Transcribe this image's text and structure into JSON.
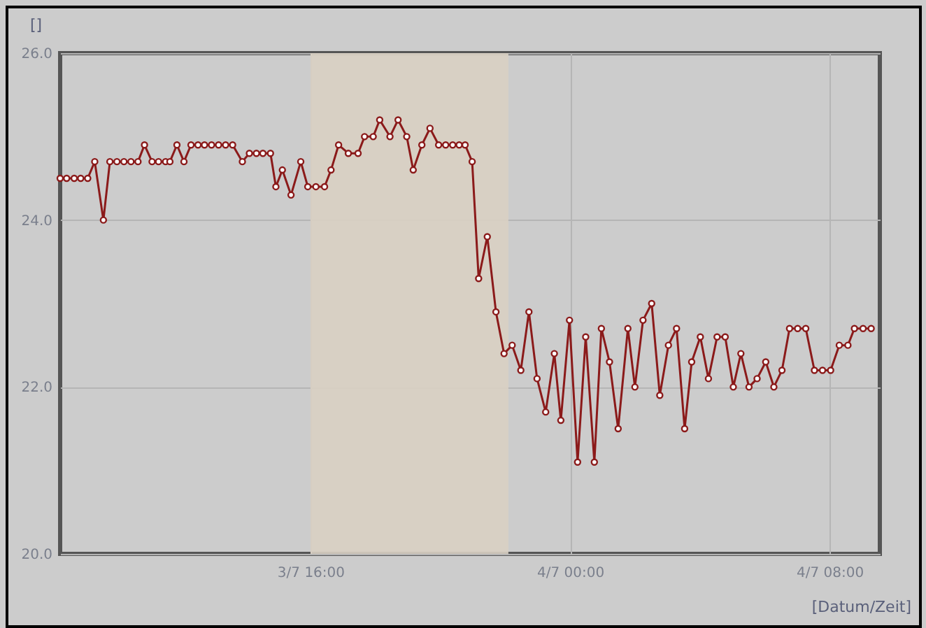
{
  "chart_data": {
    "type": "line",
    "ylabel": "[]",
    "xlabel": "[Datum/Zeit]",
    "xlim": [
      "--07-03T08:17",
      "--07-04T09:33"
    ],
    "ylim": [
      20,
      26
    ],
    "xticks": [
      {
        "value": "--07-03T16:00",
        "label": "3/7 16:00"
      },
      {
        "value": "--07-04T00:00",
        "label": "4/7 00:00"
      },
      {
        "value": "--07-04T08:00",
        "label": "4/7 08:00"
      }
    ],
    "yticks": [
      {
        "value": 20,
        "label": "20.0"
      },
      {
        "value": 22,
        "label": "22.0"
      },
      {
        "value": 24,
        "label": "24.0"
      },
      {
        "value": 26,
        "label": "26.0"
      }
    ],
    "grid": true,
    "marker": "circle",
    "line_style": "solid",
    "bands": [
      {
        "axis": "x",
        "from": "--07-03T16:00",
        "to": "--07-03T22:06",
        "color": "#d9d0c3"
      }
    ],
    "x": [
      "--07-03T08:17",
      "--07-03T08:29",
      "--07-03T08:43",
      "--07-03T08:55",
      "--07-03T09:08",
      "--07-03T09:21",
      "--07-03T09:37",
      "--07-03T09:49",
      "--07-03T10:02",
      "--07-03T10:15",
      "--07-03T10:28",
      "--07-03T10:41",
      "--07-03T10:53",
      "--07-03T11:07",
      "--07-03T11:19",
      "--07-03T11:32",
      "--07-03T11:40",
      "--07-03T11:53",
      "--07-03T12:06",
      "--07-03T12:19",
      "--07-03T12:32",
      "--07-03T12:44",
      "--07-03T12:57",
      "--07-03T13:10",
      "--07-03T13:23",
      "--07-03T13:36",
      "--07-03T13:54",
      "--07-03T14:07",
      "--07-03T14:20",
      "--07-03T14:32",
      "--07-03T14:46",
      "--07-03T14:56",
      "--07-03T15:08",
      "--07-03T15:24",
      "--07-03T15:42",
      "--07-03T15:55",
      "--07-03T16:10",
      "--07-03T16:26",
      "--07-03T16:38",
      "--07-03T16:52",
      "--07-03T17:10",
      "--07-03T17:28",
      "--07-03T17:40",
      "--07-03T17:56",
      "--07-03T18:08",
      "--07-03T18:27",
      "--07-03T18:42",
      "--07-03T18:58",
      "--07-03T19:10",
      "--07-03T19:26",
      "--07-03T19:41",
      "--07-03T19:57",
      "--07-03T20:10",
      "--07-03T20:23",
      "--07-03T20:35",
      "--07-03T20:46",
      "--07-03T20:59",
      "--07-03T21:11",
      "--07-03T21:27",
      "--07-03T21:43",
      "--07-03T21:58",
      "--07-03T22:13",
      "--07-03T22:29",
      "--07-03T22:44",
      "--07-03T22:59",
      "--07-03T23:15",
      "--07-03T23:31",
      "--07-03T23:43",
      "--07-03T23:59",
      "--07-04T00:14",
      "--07-04T00:29",
      "--07-04T00:45",
      "--07-04T00:58",
      "--07-04T01:13",
      "--07-04T01:29",
      "--07-04T01:47",
      "--07-04T02:00",
      "--07-04T02:15",
      "--07-04T02:31",
      "--07-04T02:46",
      "--07-04T03:02",
      "--07-04T03:17",
      "--07-04T03:32",
      "--07-04T03:45",
      "--07-04T04:01",
      "--07-04T04:16",
      "--07-04T04:32",
      "--07-04T04:47",
      "--07-04T05:02",
      "--07-04T05:16",
      "--07-04T05:31",
      "--07-04T05:46",
      "--07-04T06:02",
      "--07-04T06:17",
      "--07-04T06:32",
      "--07-04T06:46",
      "--07-04T07:01",
      "--07-04T07:16",
      "--07-04T07:32",
      "--07-04T07:47",
      "--07-04T08:02",
      "--07-04T08:18",
      "--07-04T08:34",
      "--07-04T08:46",
      "--07-04T09:02",
      "--07-04T09:17"
    ],
    "series": [
      {
        "color": "#8b1a1a",
        "values": [
          24.5,
          24.5,
          24.5,
          24.5,
          24.5,
          24.7,
          24.0,
          24.7,
          24.7,
          24.7,
          24.7,
          24.7,
          24.9,
          24.7,
          24.7,
          24.7,
          24.7,
          24.9,
          24.7,
          24.9,
          24.9,
          24.9,
          24.9,
          24.9,
          24.9,
          24.9,
          24.7,
          24.8,
          24.8,
          24.8,
          24.8,
          24.4,
          24.6,
          24.3,
          24.7,
          24.4,
          24.4,
          24.4,
          24.6,
          24.9,
          24.8,
          24.8,
          25.0,
          25.0,
          25.2,
          25.0,
          25.2,
          25.0,
          24.6,
          24.9,
          25.1,
          24.9,
          24.9,
          24.9,
          24.9,
          24.9,
          24.7,
          23.3,
          23.8,
          22.9,
          22.4,
          22.5,
          22.2,
          22.9,
          22.1,
          21.7,
          22.4,
          21.6,
          22.8,
          21.1,
          22.6,
          21.1,
          22.7,
          22.3,
          21.5,
          22.7,
          22.0,
          22.8,
          23.0,
          21.9,
          22.5,
          22.7,
          21.5,
          22.3,
          22.6,
          22.1,
          22.6,
          22.6,
          22.0,
          22.4,
          22.0,
          22.1,
          22.3,
          22.0,
          22.2,
          22.7,
          22.7,
          22.7,
          22.2,
          22.2,
          22.2,
          22.5,
          22.5,
          22.7,
          22.7,
          22.7
        ]
      }
    ]
  }
}
